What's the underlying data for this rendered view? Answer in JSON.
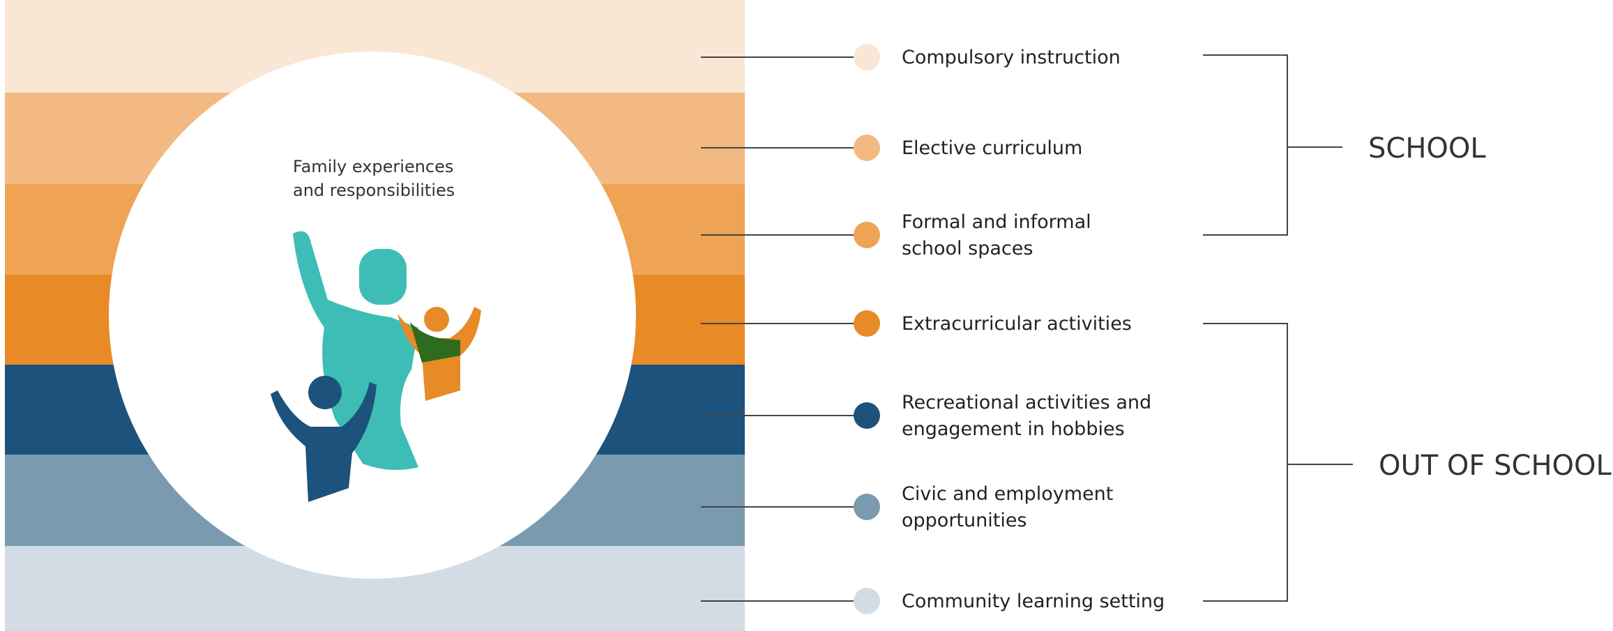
{
  "center_label": {
    "lines": [
      "Family experiences",
      "and responsibilities"
    ]
  },
  "items": [
    {
      "lines": [
        "Compulsory instruction"
      ]
    },
    {
      "lines": [
        "Elective curriculum"
      ]
    },
    {
      "lines": [
        "Formal and informal",
        "school spaces"
      ]
    },
    {
      "lines": [
        "Extracurricular activities"
      ]
    },
    {
      "lines": [
        "Recreational activities and",
        "engagement in hobbies"
      ]
    },
    {
      "lines": [
        "Civic and employment",
        "opportunities"
      ]
    },
    {
      "lines": [
        "Community learning setting"
      ]
    }
  ],
  "groups": [
    {
      "label": "SCHOOL"
    },
    {
      "label": "OUT OF SCHOOL"
    }
  ]
}
